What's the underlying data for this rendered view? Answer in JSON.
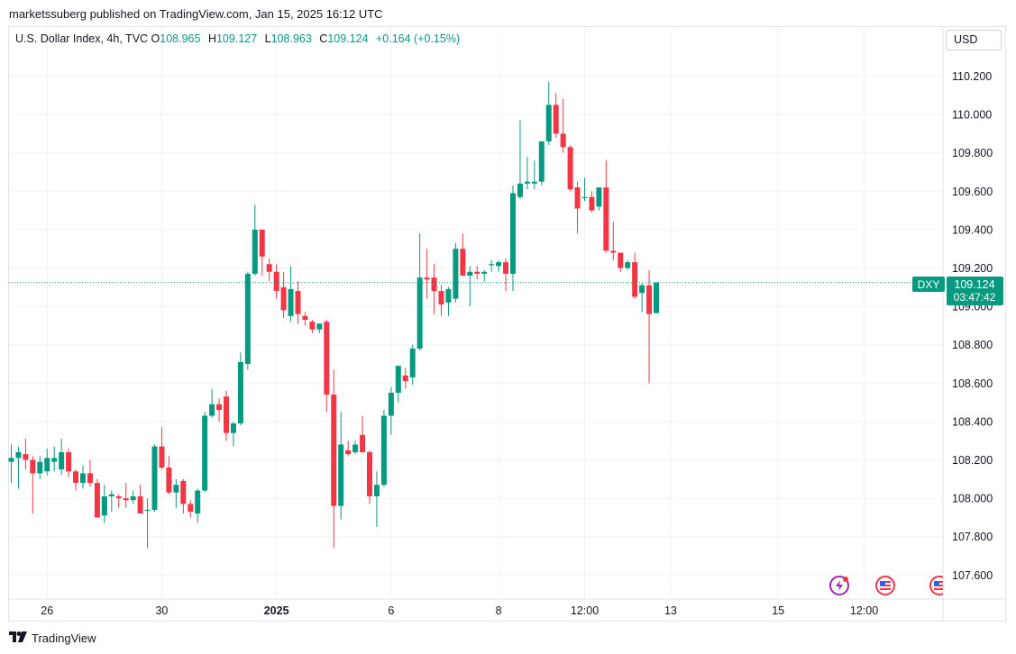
{
  "header": {
    "publish_text": "marketssuberg published on TradingView.com, Jan 15, 2025 16:12 UTC"
  },
  "legend": {
    "symbol": "U.S. Dollar Index, 4h, TVC",
    "o_label": "O",
    "o_value": "108.965",
    "h_label": "H",
    "h_value": "109.127",
    "l_label": "L",
    "l_value": "108.963",
    "c_label": "C",
    "c_value": "109.124",
    "change": "+0.164 (+0.15%)"
  },
  "currency_button": "USD",
  "price_tag": {
    "symbol": "DXY",
    "price": "109.124",
    "countdown": "03:47:42"
  },
  "brand": "TradingView",
  "colors": {
    "up": "#089981",
    "down": "#f23645",
    "grid": "#f0f3fa",
    "axis_text": "#131722"
  },
  "icons": [
    "lightning-event-icon",
    "us-flag-event-icon",
    "us-flag-event-icon"
  ],
  "chart_data": {
    "type": "candlestick",
    "ylim": [
      107.5,
      110.3
    ],
    "y_ticks": [
      107.6,
      107.8,
      108.0,
      108.2,
      108.4,
      108.6,
      108.8,
      109.0,
      109.2,
      109.4,
      109.6,
      109.8,
      110.0,
      110.2
    ],
    "y_tick_labels": [
      "107.600",
      "107.800",
      "108.000",
      "108.200",
      "108.400",
      "108.600",
      "108.800",
      "109.000",
      "109.200",
      "109.400",
      "109.600",
      "109.800",
      "110.000",
      "110.200"
    ],
    "x_ticks": [
      {
        "index": 5,
        "label": "26",
        "bold": false
      },
      {
        "index": 21,
        "label": "30",
        "bold": false
      },
      {
        "index": 37,
        "label": "2025",
        "bold": true
      },
      {
        "index": 53,
        "label": "6",
        "bold": false
      },
      {
        "index": 68,
        "label": "8",
        "bold": false
      },
      {
        "index": 80,
        "label": "12:00",
        "bold": false
      },
      {
        "index": 92,
        "label": "13",
        "bold": false
      },
      {
        "index": 107,
        "label": "15",
        "bold": false
      },
      {
        "index": 119,
        "label": "12:00",
        "bold": false
      }
    ],
    "last_price": 109.124,
    "candles": [
      [
        108.19,
        108.28,
        108.08,
        108.21
      ],
      [
        108.21,
        108.27,
        108.05,
        108.24
      ],
      [
        108.23,
        108.31,
        108.15,
        108.2
      ],
      [
        108.2,
        108.22,
        107.92,
        108.13
      ],
      [
        108.13,
        108.22,
        108.1,
        108.19
      ],
      [
        108.14,
        108.26,
        108.12,
        108.21
      ],
      [
        108.19,
        108.27,
        108.14,
        108.21
      ],
      [
        108.15,
        108.31,
        108.12,
        108.24
      ],
      [
        108.24,
        108.26,
        108.11,
        108.14
      ],
      [
        108.14,
        108.15,
        108.04,
        108.08
      ],
      [
        108.08,
        108.17,
        108.05,
        108.13
      ],
      [
        108.13,
        108.2,
        108.06,
        108.08
      ],
      [
        108.08,
        108.1,
        107.9,
        107.9
      ],
      [
        107.91,
        108.07,
        107.87,
        108.01
      ],
      [
        108.01,
        108.04,
        107.93,
        108.02
      ],
      [
        108.01,
        108.02,
        107.95,
        108.0
      ],
      [
        108.0,
        108.08,
        107.95,
        107.99
      ],
      [
        107.99,
        108.04,
        107.97,
        108.01
      ],
      [
        108.01,
        108.07,
        107.94,
        107.92
      ],
      [
        107.94,
        108.0,
        107.74,
        107.94
      ],
      [
        107.94,
        108.28,
        107.93,
        108.27
      ],
      [
        108.27,
        108.37,
        108.15,
        108.16
      ],
      [
        108.16,
        108.22,
        108.02,
        108.03
      ],
      [
        108.03,
        108.1,
        107.95,
        108.07
      ],
      [
        108.09,
        108.1,
        107.92,
        107.97
      ],
      [
        107.97,
        107.99,
        107.9,
        107.93
      ],
      [
        107.92,
        108.05,
        107.87,
        108.04
      ],
      [
        108.04,
        108.45,
        108.03,
        108.43
      ],
      [
        108.43,
        108.57,
        108.42,
        108.49
      ],
      [
        108.49,
        108.52,
        108.4,
        108.46
      ],
      [
        108.53,
        108.56,
        108.3,
        108.34
      ],
      [
        108.34,
        108.4,
        108.27,
        108.39
      ],
      [
        108.39,
        108.76,
        108.38,
        108.71
      ],
      [
        108.7,
        109.18,
        108.67,
        109.17
      ],
      [
        109.17,
        109.53,
        109.16,
        109.4
      ],
      [
        109.4,
        109.4,
        109.16,
        109.26
      ],
      [
        109.22,
        109.25,
        109.13,
        109.18
      ],
      [
        109.18,
        109.22,
        109.04,
        109.08
      ],
      [
        109.1,
        109.18,
        108.94,
        108.98
      ],
      [
        108.95,
        109.21,
        108.92,
        109.09
      ],
      [
        109.08,
        109.13,
        108.91,
        108.96
      ],
      [
        108.95,
        108.97,
        108.9,
        108.93
      ],
      [
        108.92,
        108.93,
        108.86,
        108.88
      ],
      [
        108.88,
        108.91,
        108.86,
        108.91
      ],
      [
        108.92,
        108.93,
        108.45,
        108.54
      ],
      [
        108.54,
        108.67,
        107.74,
        107.96
      ],
      [
        107.96,
        108.45,
        107.89,
        108.28
      ],
      [
        108.25,
        108.3,
        108.22,
        108.23
      ],
      [
        108.24,
        108.3,
        108.23,
        108.28
      ],
      [
        108.33,
        108.43,
        108.26,
        108.24
      ],
      [
        108.24,
        108.25,
        107.97,
        108.01
      ],
      [
        108.01,
        108.14,
        107.85,
        108.07
      ],
      [
        108.07,
        108.46,
        108.06,
        108.43
      ],
      [
        108.43,
        108.58,
        108.33,
        108.55
      ],
      [
        108.55,
        108.69,
        108.5,
        108.69
      ],
      [
        108.64,
        108.68,
        108.57,
        108.61
      ],
      [
        108.63,
        108.8,
        108.59,
        108.78
      ],
      [
        108.78,
        109.38,
        108.77,
        109.15
      ],
      [
        109.15,
        109.3,
        109.04,
        109.14
      ],
      [
        109.15,
        109.22,
        108.96,
        109.08
      ],
      [
        109.08,
        109.11,
        108.95,
        109.01
      ],
      [
        109.02,
        109.1,
        108.95,
        109.09
      ],
      [
        109.04,
        109.33,
        109.02,
        109.3
      ],
      [
        109.3,
        109.38,
        109.16,
        109.16
      ],
      [
        109.16,
        109.21,
        109.0,
        109.18
      ],
      [
        109.18,
        109.21,
        109.14,
        109.17
      ],
      [
        109.17,
        109.19,
        109.13,
        109.18
      ],
      [
        109.22,
        109.24,
        109.18,
        109.22
      ],
      [
        109.21,
        109.24,
        109.18,
        109.23
      ],
      [
        109.23,
        109.25,
        109.08,
        109.17
      ],
      [
        109.17,
        109.63,
        109.08,
        109.59
      ],
      [
        109.57,
        109.97,
        109.56,
        109.64
      ],
      [
        109.64,
        109.78,
        109.61,
        109.65
      ],
      [
        109.64,
        109.76,
        109.61,
        109.65
      ],
      [
        109.65,
        109.85,
        109.63,
        109.86
      ],
      [
        109.86,
        110.17,
        109.84,
        110.05
      ],
      [
        110.05,
        110.11,
        109.88,
        109.9
      ],
      [
        109.9,
        110.08,
        109.8,
        109.83
      ],
      [
        109.83,
        109.84,
        109.6,
        109.61
      ],
      [
        109.62,
        109.65,
        109.38,
        109.51
      ],
      [
        109.57,
        109.67,
        109.55,
        109.57
      ],
      [
        109.57,
        109.6,
        109.49,
        109.5
      ],
      [
        109.52,
        109.62,
        109.5,
        109.62
      ],
      [
        109.62,
        109.76,
        109.28,
        109.29
      ],
      [
        109.29,
        109.44,
        109.24,
        109.28
      ],
      [
        109.28,
        109.26,
        109.18,
        109.2
      ],
      [
        109.2,
        109.24,
        109.19,
        109.23
      ],
      [
        109.23,
        109.28,
        109.04,
        109.05
      ],
      [
        109.07,
        109.12,
        108.97,
        109.11
      ],
      [
        109.11,
        109.19,
        108.6,
        108.96
      ],
      [
        108.965,
        109.127,
        108.963,
        109.124
      ]
    ]
  }
}
